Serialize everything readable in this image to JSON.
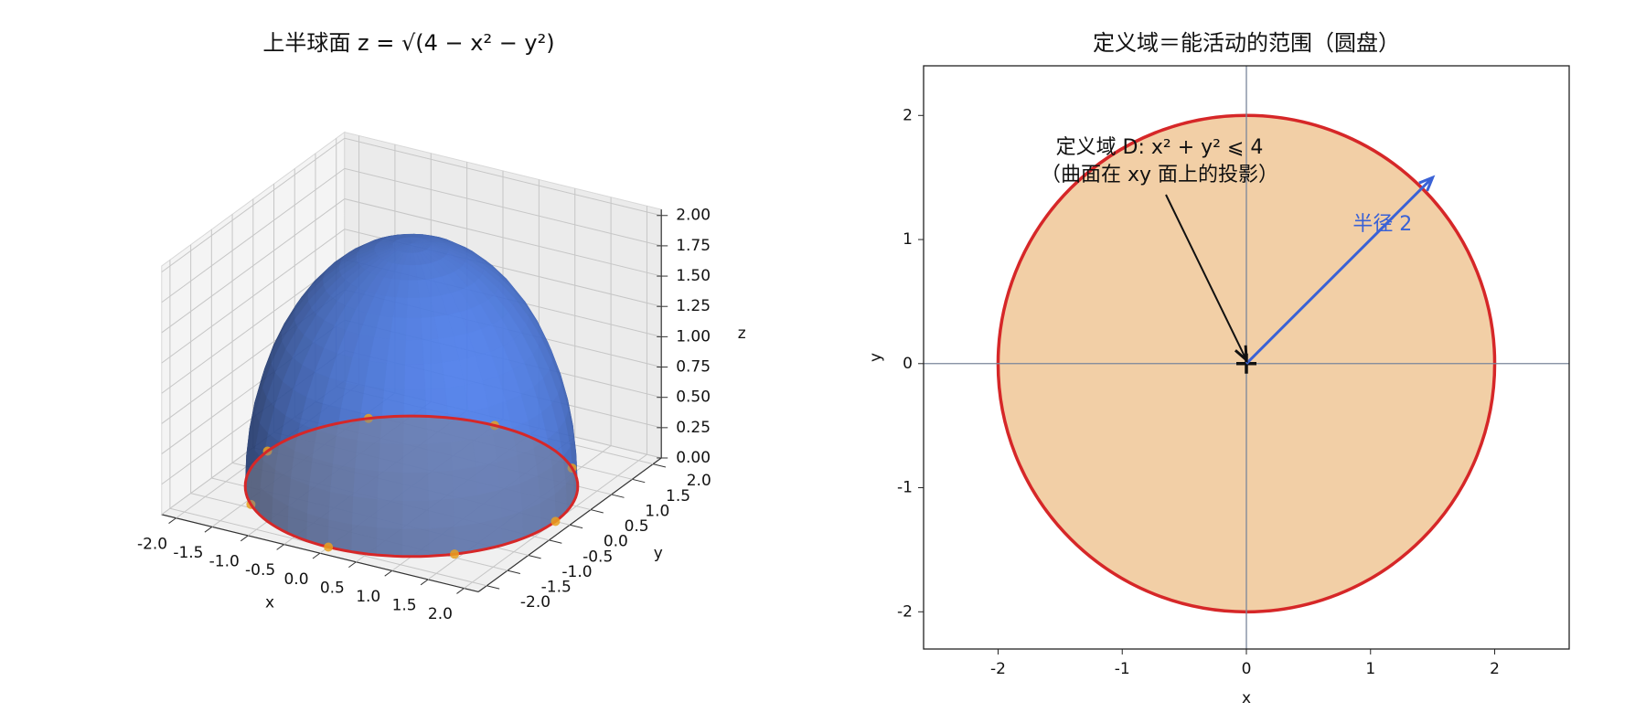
{
  "chart_data": [
    {
      "type": "surface3d",
      "title": "上半球面 z = √(4 − x² − y²)",
      "xlabel": "x",
      "ylabel": "y",
      "zlabel": "z",
      "radius": 2,
      "surface_color": "#4a78e0",
      "boundary_color": "#d62728",
      "marker_color": "#e8a020",
      "markers": {
        "x": [
          2,
          1.414,
          0,
          -1.414,
          -2,
          -1.414,
          0,
          1.414
        ],
        "y": [
          0,
          1.414,
          2,
          1.414,
          0,
          -1.414,
          -2,
          -1.414
        ]
      },
      "xlim": [
        -2.2,
        2.2
      ],
      "ylim": [
        -2.2,
        2.2
      ],
      "zlim": [
        0,
        2.05
      ],
      "xticks": [
        {
          "value": -2,
          "label": "-2.0"
        },
        {
          "value": -1.5,
          "label": "-1.5"
        },
        {
          "value": -1,
          "label": "-1.0"
        },
        {
          "value": -0.5,
          "label": "-0.5"
        },
        {
          "value": 0,
          "label": "0.0"
        },
        {
          "value": 0.5,
          "label": "0.5"
        },
        {
          "value": 1,
          "label": "1.0"
        },
        {
          "value": 1.5,
          "label": "1.5"
        },
        {
          "value": 2,
          "label": "2.0"
        }
      ],
      "yticks": [
        {
          "value": -2,
          "label": "-2.0"
        },
        {
          "value": -1.5,
          "label": "-1.5"
        },
        {
          "value": -1,
          "label": "-1.0"
        },
        {
          "value": -0.5,
          "label": "-0.5"
        },
        {
          "value": 0,
          "label": "0.0"
        },
        {
          "value": 0.5,
          "label": "0.5"
        },
        {
          "value": 1,
          "label": "1.0"
        },
        {
          "value": 1.5,
          "label": "1.5"
        },
        {
          "value": 2,
          "label": "2.0"
        }
      ],
      "zticks": [
        {
          "value": 0,
          "label": "0.00"
        },
        {
          "value": 0.25,
          "label": "0.25"
        },
        {
          "value": 0.5,
          "label": "0.50"
        },
        {
          "value": 0.75,
          "label": "0.75"
        },
        {
          "value": 1,
          "label": "1.00"
        },
        {
          "value": 1.25,
          "label": "1.25"
        },
        {
          "value": 1.5,
          "label": "1.50"
        },
        {
          "value": 1.75,
          "label": "1.75"
        },
        {
          "value": 2,
          "label": "2.00"
        }
      ],
      "grid": true
    },
    {
      "type": "disk",
      "title": "定义域＝能活动的范围（圆盘）",
      "xlabel": "x",
      "ylabel": "y",
      "center": [
        0,
        0
      ],
      "radius": 2,
      "fill_color": "#f2cfa6",
      "edge_color": "#d62728",
      "axis_line_color": "#7a869a",
      "xlim": [
        -2.6,
        2.6
      ],
      "ylim": [
        -2.3,
        2.4
      ],
      "xticks": [
        -2,
        -1,
        0,
        1,
        2
      ],
      "yticks": [
        -2,
        -1,
        0,
        1,
        2
      ],
      "annotation": {
        "lines": [
          "定义域 D: x² + y² ⩽ 4",
          "（曲面在 xy 面上的投影）"
        ],
        "xy": [
          0,
          0
        ]
      },
      "radius_arrow": {
        "label": "半径 2",
        "to": [
          1.5,
          1.5
        ],
        "color": "#3a62d6"
      }
    }
  ]
}
